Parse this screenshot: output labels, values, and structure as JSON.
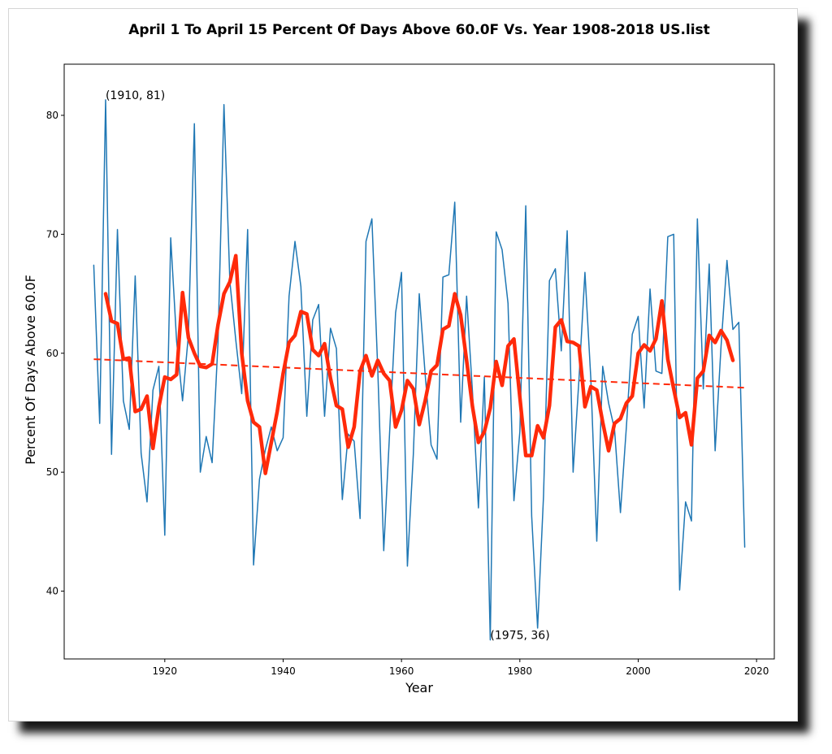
{
  "chart_data": {
    "type": "line",
    "title": "April 1 To April 15 Percent Of Days Above 60.0F Vs. Year 1908-2018 US.list",
    "xlabel": "Year",
    "ylabel": "Percent Of Days Above 60.0F",
    "xlim": [
      1903,
      2023
    ],
    "ylim": [
      34.3,
      84.3
    ],
    "xticks": [
      "1920",
      "1940",
      "1960",
      "1980",
      "2000",
      "2020"
    ],
    "yticks": [
      "40",
      "50",
      "60",
      "70",
      "80"
    ],
    "grid": false,
    "series": [
      {
        "kind": "annual",
        "color": "#1f77b4",
        "x": [
          1908,
          1909,
          1910,
          1911,
          1912,
          1913,
          1914,
          1915,
          1916,
          1917,
          1918,
          1919,
          1920,
          1921,
          1922,
          1923,
          1924,
          1925,
          1926,
          1927,
          1928,
          1929,
          1930,
          1931,
          1932,
          1933,
          1934,
          1935,
          1936,
          1937,
          1938,
          1939,
          1940,
          1941,
          1942,
          1943,
          1944,
          1945,
          1946,
          1947,
          1948,
          1949,
          1950,
          1951,
          1952,
          1953,
          1954,
          1955,
          1956,
          1957,
          1958,
          1959,
          1960,
          1961,
          1962,
          1963,
          1964,
          1965,
          1966,
          1967,
          1968,
          1969,
          1970,
          1971,
          1972,
          1973,
          1974,
          1975,
          1976,
          1977,
          1978,
          1979,
          1980,
          1981,
          1982,
          1983,
          1984,
          1985,
          1986,
          1987,
          1988,
          1989,
          1990,
          1991,
          1992,
          1993,
          1994,
          1995,
          1996,
          1997,
          1998,
          1999,
          2000,
          2001,
          2002,
          2003,
          2004,
          2005,
          2006,
          2007,
          2008,
          2009,
          2010,
          2011,
          2012,
          2013,
          2014,
          2015,
          2016,
          2017,
          2018
        ],
        "y": [
          67.4,
          54.1,
          81.3,
          51.5,
          70.4,
          56.0,
          53.6,
          66.5,
          51.6,
          47.5,
          56.9,
          58.9,
          44.7,
          69.7,
          61.0,
          56.0,
          61.6,
          79.3,
          50.0,
          53.0,
          50.8,
          61.0,
          80.9,
          66.0,
          61.1,
          56.6,
          70.4,
          42.2,
          49.4,
          51.9,
          53.8,
          51.8,
          52.9,
          64.8,
          69.4,
          65.6,
          54.7,
          62.8,
          64.1,
          54.7,
          62.1,
          60.4,
          47.7,
          53.2,
          52.6,
          46.1,
          69.4,
          71.3,
          58.5,
          43.4,
          53.4,
          63.4,
          66.8,
          42.1,
          51.5,
          65.0,
          58.2,
          52.3,
          51.1,
          66.4,
          66.6,
          72.7,
          54.2,
          64.8,
          56.7,
          47.0,
          58.0,
          35.9,
          70.2,
          68.7,
          64.2,
          47.6,
          53.4,
          72.4,
          46.3,
          36.9,
          48.0,
          66.1,
          67.1,
          60.2,
          70.3,
          50.0,
          57.9,
          66.8,
          57.8,
          44.2,
          58.9,
          55.8,
          53.6,
          46.6,
          53.8,
          61.6,
          63.1,
          55.4,
          65.4,
          58.5,
          58.3,
          69.8,
          70.0,
          40.1,
          47.5,
          45.9,
          71.3,
          57.0,
          67.5,
          51.8,
          60.6,
          67.8,
          62.0,
          62.6,
          43.7
        ]
      },
      {
        "kind": "smoothed",
        "color": "#ff2a0a",
        "x": [
          1910,
          1911,
          1912,
          1913,
          1914,
          1915,
          1916,
          1917,
          1918,
          1919,
          1920,
          1921,
          1922,
          1923,
          1924,
          1925,
          1926,
          1927,
          1928,
          1929,
          1930,
          1931,
          1932,
          1933,
          1934,
          1935,
          1936,
          1937,
          1938,
          1939,
          1940,
          1941,
          1942,
          1943,
          1944,
          1945,
          1946,
          1947,
          1948,
          1949,
          1950,
          1951,
          1952,
          1953,
          1954,
          1955,
          1956,
          1957,
          1958,
          1959,
          1960,
          1961,
          1962,
          1963,
          1964,
          1965,
          1966,
          1967,
          1968,
          1969,
          1970,
          1971,
          1972,
          1973,
          1974,
          1975,
          1976,
          1977,
          1978,
          1979,
          1980,
          1981,
          1982,
          1983,
          1984,
          1985,
          1986,
          1987,
          1988,
          1989,
          1990,
          1991,
          1992,
          1993,
          1994,
          1995,
          1996,
          1997,
          1998,
          1999,
          2000,
          2001,
          2002,
          2003,
          2004,
          2005,
          2006,
          2007,
          2008,
          2009,
          2010,
          2011,
          2012,
          2013,
          2014,
          2015,
          2016
        ],
        "y": [
          65.0,
          62.7,
          62.5,
          59.5,
          59.6,
          55.1,
          55.3,
          56.4,
          52.0,
          55.5,
          58.0,
          57.8,
          58.2,
          65.1,
          61.3,
          60.0,
          58.9,
          58.8,
          59.1,
          62.4,
          65.0,
          66.0,
          68.2,
          60.0,
          56.0,
          54.2,
          53.8,
          49.9,
          52.5,
          55.1,
          58.3,
          60.9,
          61.5,
          63.5,
          63.3,
          60.3,
          59.8,
          60.8,
          57.9,
          55.6,
          55.3,
          52.1,
          53.8,
          58.5,
          59.8,
          58.1,
          59.4,
          58.3,
          57.7,
          53.8,
          55.2,
          57.7,
          57.0,
          54.0,
          56.0,
          58.5,
          59.0,
          62.0,
          62.3,
          65.0,
          63.2,
          59.4,
          55.5,
          52.5,
          53.4,
          55.4,
          59.3,
          57.3,
          60.6,
          61.2,
          56.3,
          51.4,
          51.4,
          53.9,
          52.9,
          55.6,
          62.2,
          62.8,
          61.0,
          60.9,
          60.6,
          55.5,
          57.2,
          56.9,
          54.2,
          51.8,
          54.1,
          54.5,
          55.8,
          56.4,
          60.0,
          60.7,
          60.2,
          61.2,
          64.4,
          59.5,
          57.0,
          54.6,
          55.0,
          52.3,
          57.9,
          58.5,
          61.5,
          60.9,
          61.9,
          61.1,
          59.4
        ]
      },
      {
        "kind": "trend",
        "color": "#ff2a0a",
        "x": [
          1908,
          2018
        ],
        "y": [
          59.5,
          57.1
        ]
      }
    ],
    "annotations": [
      {
        "text": "(1910, 81)",
        "x": 1910,
        "y": 81.3
      },
      {
        "text": "(1975, 36)",
        "x": 1975,
        "y": 35.9
      }
    ]
  }
}
